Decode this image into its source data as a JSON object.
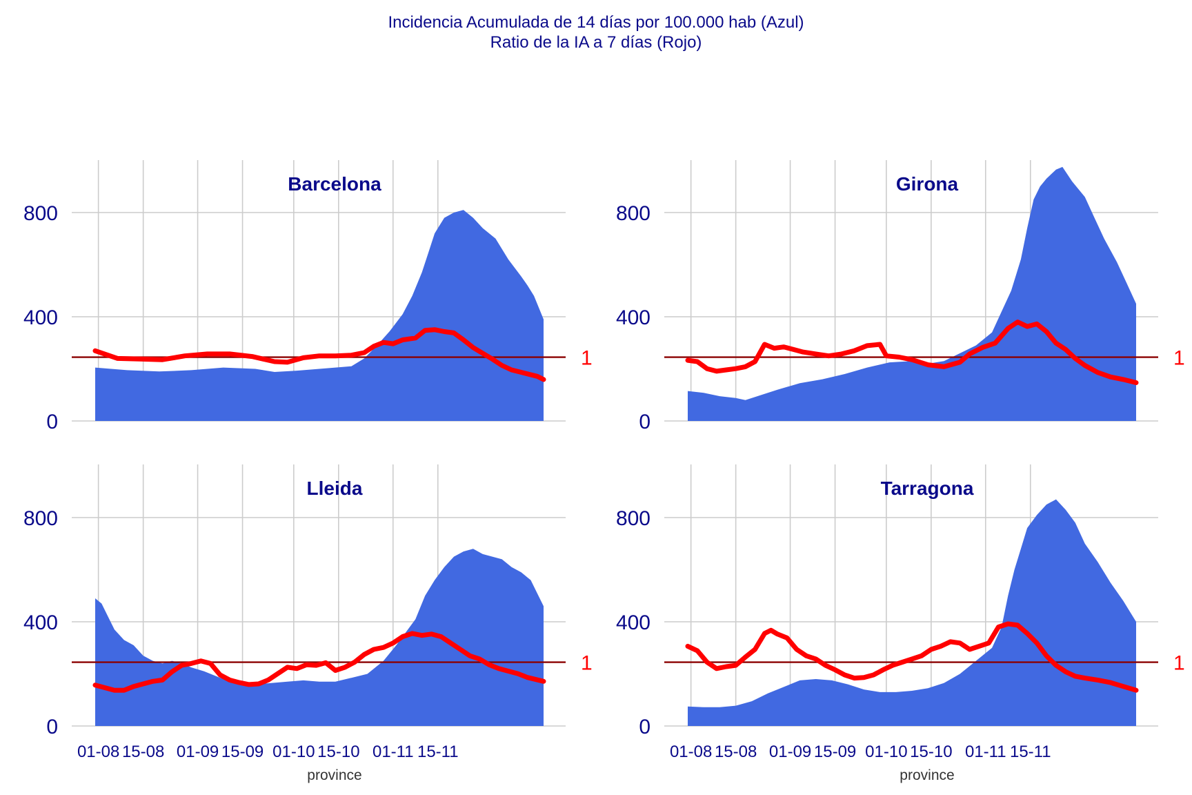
{
  "title": {
    "line1": "Incidencia Acumulada de 14 días por 100.000 hab (Azul)",
    "line2": "Ratio de la IA a 7 días (Rojo)"
  },
  "chart_data": {
    "type": "area",
    "xlabel": "province",
    "x_ticks": [
      "01-08",
      "15-08",
      "01-09",
      "15-09",
      "01-10",
      "15-10",
      "01-11",
      "15-11"
    ],
    "y_ticks": [
      0,
      400,
      800
    ],
    "ylim": [
      0,
      1000
    ],
    "xlim_days": [
      0,
      112
    ],
    "ratio_reference_label": "1",
    "colors": {
      "incidence": "#4169e1",
      "ratio": "#ff0000",
      "reference": "#8b0000",
      "text": "#0a0a8a"
    },
    "panels": [
      {
        "name": "Barcelona",
        "incidence": [
          [
            0,
            205
          ],
          [
            10,
            195
          ],
          [
            20,
            190
          ],
          [
            30,
            195
          ],
          [
            40,
            205
          ],
          [
            50,
            200
          ],
          [
            56,
            188
          ],
          [
            63,
            193
          ],
          [
            70,
            200
          ],
          [
            75,
            205
          ],
          [
            80,
            210
          ],
          [
            84,
            240
          ],
          [
            88,
            290
          ],
          [
            92,
            345
          ],
          [
            96,
            410
          ],
          [
            99,
            480
          ],
          [
            102,
            570
          ],
          [
            104,
            645
          ],
          [
            106,
            720
          ],
          [
            109,
            780
          ],
          [
            112,
            800
          ],
          [
            115,
            810
          ],
          [
            118,
            780
          ],
          [
            121,
            740
          ],
          [
            125,
            700
          ],
          [
            129,
            620
          ],
          [
            133,
            555
          ],
          [
            135,
            520
          ],
          [
            137,
            480
          ],
          [
            140,
            390
          ]
        ],
        "ratio": [
          [
            0,
            1.1
          ],
          [
            4,
            1.03
          ],
          [
            7,
            0.98
          ],
          [
            14,
            0.97
          ],
          [
            21,
            0.96
          ],
          [
            28,
            1.02
          ],
          [
            35,
            1.05
          ],
          [
            42,
            1.05
          ],
          [
            49,
            1.01
          ],
          [
            56,
            0.93
          ],
          [
            60,
            0.92
          ],
          [
            65,
            0.99
          ],
          [
            70,
            1.02
          ],
          [
            75,
            1.02
          ],
          [
            80,
            1.03
          ],
          [
            84,
            1.07
          ],
          [
            87,
            1.17
          ],
          [
            90,
            1.23
          ],
          [
            93,
            1.21
          ],
          [
            96,
            1.27
          ],
          [
            100,
            1.3
          ],
          [
            103,
            1.42
          ],
          [
            106,
            1.43
          ],
          [
            109,
            1.4
          ],
          [
            112,
            1.38
          ],
          [
            115,
            1.27
          ],
          [
            118,
            1.15
          ],
          [
            121,
            1.06
          ],
          [
            124,
            0.97
          ],
          [
            127,
            0.87
          ],
          [
            130,
            0.8
          ],
          [
            134,
            0.75
          ],
          [
            138,
            0.7
          ],
          [
            140,
            0.65
          ]
        ]
      },
      {
        "name": "Girona",
        "incidence": [
          [
            0,
            115
          ],
          [
            5,
            108
          ],
          [
            10,
            95
          ],
          [
            15,
            88
          ],
          [
            18,
            80
          ],
          [
            23,
            100
          ],
          [
            28,
            120
          ],
          [
            35,
            145
          ],
          [
            42,
            160
          ],
          [
            49,
            180
          ],
          [
            56,
            205
          ],
          [
            63,
            225
          ],
          [
            70,
            230
          ],
          [
            75,
            220
          ],
          [
            80,
            230
          ],
          [
            85,
            260
          ],
          [
            90,
            290
          ],
          [
            95,
            340
          ],
          [
            98,
            420
          ],
          [
            101,
            500
          ],
          [
            104,
            620
          ],
          [
            106,
            740
          ],
          [
            108,
            850
          ],
          [
            110,
            900
          ],
          [
            112,
            930
          ],
          [
            115,
            965
          ],
          [
            117,
            975
          ],
          [
            120,
            920
          ],
          [
            124,
            860
          ],
          [
            127,
            780
          ],
          [
            130,
            700
          ],
          [
            134,
            610
          ],
          [
            137,
            530
          ],
          [
            140,
            450
          ]
        ],
        "ratio": [
          [
            0,
            0.95
          ],
          [
            3,
            0.93
          ],
          [
            6,
            0.82
          ],
          [
            9,
            0.78
          ],
          [
            12,
            0.8
          ],
          [
            15,
            0.82
          ],
          [
            18,
            0.85
          ],
          [
            21,
            0.93
          ],
          [
            24,
            1.2
          ],
          [
            27,
            1.14
          ],
          [
            30,
            1.16
          ],
          [
            33,
            1.12
          ],
          [
            36,
            1.08
          ],
          [
            40,
            1.05
          ],
          [
            44,
            1.02
          ],
          [
            48,
            1.05
          ],
          [
            52,
            1.1
          ],
          [
            56,
            1.18
          ],
          [
            60,
            1.2
          ],
          [
            62,
            1.02
          ],
          [
            66,
            1.0
          ],
          [
            70,
            0.96
          ],
          [
            75,
            0.88
          ],
          [
            80,
            0.85
          ],
          [
            85,
            0.92
          ],
          [
            88,
            1.05
          ],
          [
            92,
            1.15
          ],
          [
            96,
            1.22
          ],
          [
            100,
            1.45
          ],
          [
            103,
            1.55
          ],
          [
            106,
            1.48
          ],
          [
            109,
            1.52
          ],
          [
            112,
            1.4
          ],
          [
            115,
            1.22
          ],
          [
            118,
            1.12
          ],
          [
            121,
            0.98
          ],
          [
            124,
            0.87
          ],
          [
            128,
            0.76
          ],
          [
            132,
            0.69
          ],
          [
            136,
            0.65
          ],
          [
            140,
            0.6
          ]
        ]
      },
      {
        "name": "Lleida",
        "incidence": [
          [
            0,
            490
          ],
          [
            2,
            470
          ],
          [
            4,
            420
          ],
          [
            6,
            370
          ],
          [
            9,
            330
          ],
          [
            12,
            310
          ],
          [
            15,
            270
          ],
          [
            18,
            250
          ],
          [
            21,
            240
          ],
          [
            24,
            250
          ],
          [
            27,
            240
          ],
          [
            30,
            225
          ],
          [
            34,
            210
          ],
          [
            38,
            190
          ],
          [
            42,
            170
          ],
          [
            46,
            160
          ],
          [
            50,
            160
          ],
          [
            55,
            165
          ],
          [
            60,
            170
          ],
          [
            65,
            175
          ],
          [
            70,
            170
          ],
          [
            75,
            170
          ],
          [
            80,
            185
          ],
          [
            85,
            200
          ],
          [
            90,
            250
          ],
          [
            94,
            310
          ],
          [
            97,
            360
          ],
          [
            100,
            410
          ],
          [
            103,
            500
          ],
          [
            106,
            560
          ],
          [
            109,
            610
          ],
          [
            112,
            650
          ],
          [
            115,
            670
          ],
          [
            118,
            680
          ],
          [
            121,
            660
          ],
          [
            124,
            650
          ],
          [
            127,
            640
          ],
          [
            130,
            610
          ],
          [
            133,
            590
          ],
          [
            136,
            560
          ],
          [
            140,
            460
          ]
        ],
        "ratio": [
          [
            0,
            0.64
          ],
          [
            3,
            0.6
          ],
          [
            6,
            0.56
          ],
          [
            9,
            0.56
          ],
          [
            12,
            0.62
          ],
          [
            15,
            0.66
          ],
          [
            18,
            0.7
          ],
          [
            21,
            0.72
          ],
          [
            24,
            0.85
          ],
          [
            27,
            0.95
          ],
          [
            30,
            0.98
          ],
          [
            33,
            1.02
          ],
          [
            36,
            0.98
          ],
          [
            39,
            0.8
          ],
          [
            42,
            0.72
          ],
          [
            45,
            0.68
          ],
          [
            48,
            0.65
          ],
          [
            51,
            0.66
          ],
          [
            54,
            0.72
          ],
          [
            57,
            0.82
          ],
          [
            60,
            0.92
          ],
          [
            63,
            0.9
          ],
          [
            66,
            0.96
          ],
          [
            69,
            0.95
          ],
          [
            72,
            0.99
          ],
          [
            75,
            0.87
          ],
          [
            78,
            0.92
          ],
          [
            81,
            1.0
          ],
          [
            84,
            1.12
          ],
          [
            87,
            1.2
          ],
          [
            90,
            1.23
          ],
          [
            93,
            1.3
          ],
          [
            96,
            1.4
          ],
          [
            99,
            1.45
          ],
          [
            102,
            1.42
          ],
          [
            105,
            1.44
          ],
          [
            108,
            1.4
          ],
          [
            111,
            1.3
          ],
          [
            114,
            1.2
          ],
          [
            117,
            1.1
          ],
          [
            120,
            1.05
          ],
          [
            123,
            0.96
          ],
          [
            126,
            0.9
          ],
          [
            129,
            0.86
          ],
          [
            132,
            0.82
          ],
          [
            135,
            0.76
          ],
          [
            140,
            0.7
          ]
        ]
      },
      {
        "name": "Tarragona",
        "incidence": [
          [
            0,
            75
          ],
          [
            5,
            72
          ],
          [
            10,
            72
          ],
          [
            15,
            78
          ],
          [
            20,
            95
          ],
          [
            25,
            125
          ],
          [
            30,
            150
          ],
          [
            35,
            175
          ],
          [
            40,
            180
          ],
          [
            45,
            175
          ],
          [
            50,
            160
          ],
          [
            55,
            140
          ],
          [
            60,
            130
          ],
          [
            65,
            130
          ],
          [
            70,
            135
          ],
          [
            75,
            145
          ],
          [
            80,
            165
          ],
          [
            85,
            200
          ],
          [
            90,
            250
          ],
          [
            95,
            300
          ],
          [
            98,
            380
          ],
          [
            100,
            500
          ],
          [
            102,
            600
          ],
          [
            104,
            680
          ],
          [
            106,
            760
          ],
          [
            109,
            810
          ],
          [
            112,
            850
          ],
          [
            115,
            870
          ],
          [
            118,
            830
          ],
          [
            121,
            780
          ],
          [
            124,
            700
          ],
          [
            128,
            630
          ],
          [
            132,
            550
          ],
          [
            136,
            480
          ],
          [
            140,
            400
          ]
        ],
        "ratio": [
          [
            0,
            1.25
          ],
          [
            3,
            1.18
          ],
          [
            6,
            1.0
          ],
          [
            9,
            0.9
          ],
          [
            12,
            0.93
          ],
          [
            15,
            0.95
          ],
          [
            18,
            1.08
          ],
          [
            21,
            1.2
          ],
          [
            24,
            1.45
          ],
          [
            26,
            1.5
          ],
          [
            28,
            1.44
          ],
          [
            31,
            1.38
          ],
          [
            34,
            1.2
          ],
          [
            37,
            1.1
          ],
          [
            40,
            1.05
          ],
          [
            43,
            0.95
          ],
          [
            46,
            0.88
          ],
          [
            49,
            0.8
          ],
          [
            52,
            0.75
          ],
          [
            55,
            0.76
          ],
          [
            58,
            0.8
          ],
          [
            61,
            0.88
          ],
          [
            64,
            0.95
          ],
          [
            67,
            1.0
          ],
          [
            70,
            1.05
          ],
          [
            73,
            1.1
          ],
          [
            76,
            1.2
          ],
          [
            79,
            1.25
          ],
          [
            82,
            1.32
          ],
          [
            85,
            1.3
          ],
          [
            88,
            1.2
          ],
          [
            91,
            1.25
          ],
          [
            94,
            1.3
          ],
          [
            97,
            1.55
          ],
          [
            100,
            1.6
          ],
          [
            103,
            1.58
          ],
          [
            106,
            1.45
          ],
          [
            109,
            1.3
          ],
          [
            112,
            1.1
          ],
          [
            115,
            0.95
          ],
          [
            118,
            0.85
          ],
          [
            121,
            0.78
          ],
          [
            124,
            0.75
          ],
          [
            128,
            0.72
          ],
          [
            132,
            0.68
          ],
          [
            136,
            0.62
          ],
          [
            140,
            0.56
          ]
        ]
      }
    ]
  }
}
